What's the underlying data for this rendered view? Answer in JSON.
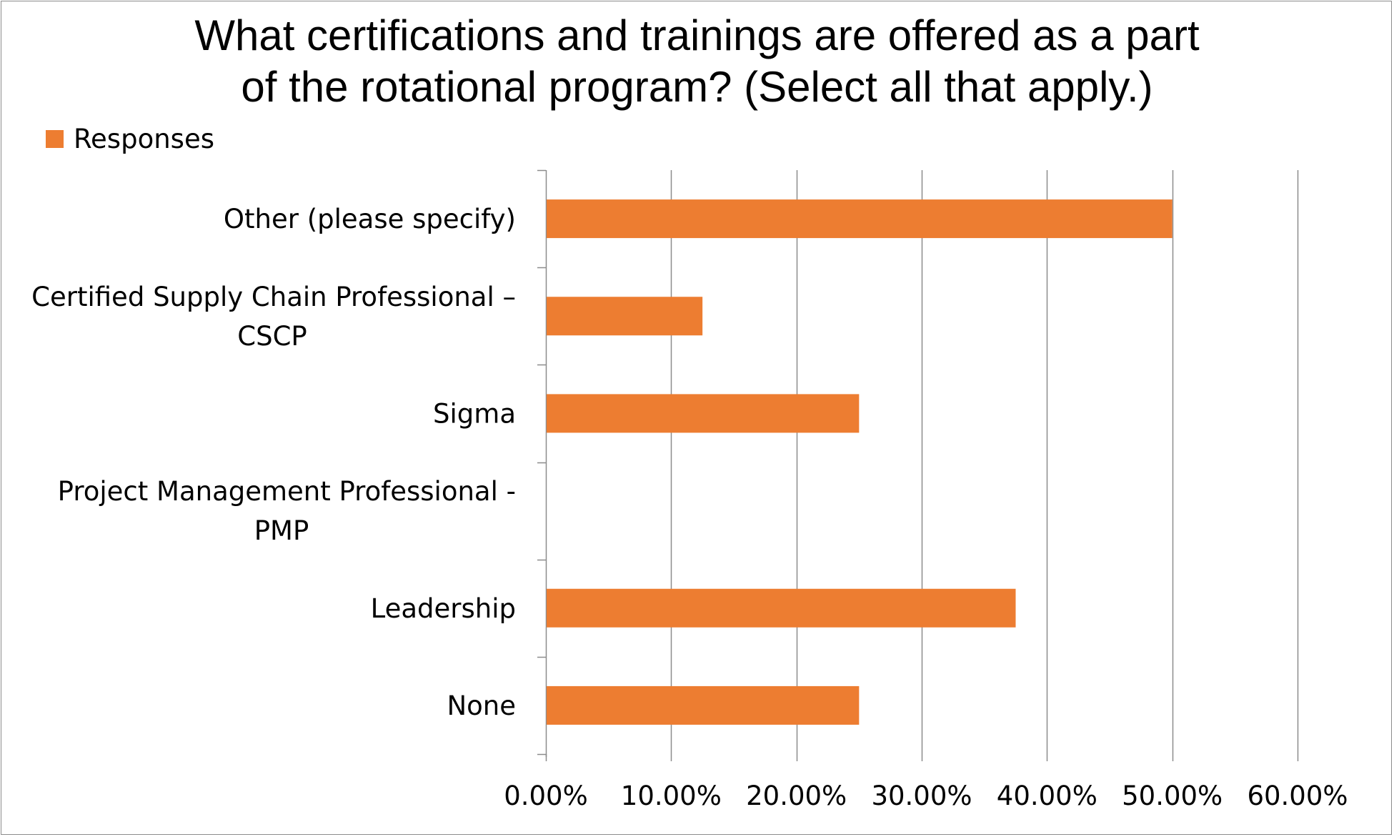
{
  "chart_data": {
    "type": "bar",
    "orientation": "horizontal",
    "title": [
      "What certifications and trainings are offered as a part",
      "of the rotational program? (Select all that apply.)"
    ],
    "categories": [
      [
        "Other (please specify)"
      ],
      [
        "Certified Supply Chain Professional –",
        "CSCP"
      ],
      [
        "Sigma"
      ],
      [
        "Project Management Professional -",
        "PMP"
      ],
      [
        "Leadership"
      ],
      [
        "None"
      ]
    ],
    "series": [
      {
        "name": "Responses",
        "color": "#ED7D31",
        "values": [
          0.5,
          0.125,
          0.25,
          0,
          0.375,
          0.25
        ]
      }
    ],
    "xlim": [
      0,
      0.6
    ],
    "xticks": [
      0,
      0.1,
      0.2,
      0.3,
      0.4,
      0.5,
      0.6
    ],
    "xtick_labels": [
      "0.00%",
      "10.00%",
      "20.00%",
      "30.00%",
      "40.00%",
      "50.00%",
      "60.00%"
    ],
    "grid": true,
    "legend_position": "top-left",
    "xlabel": "",
    "ylabel": ""
  }
}
